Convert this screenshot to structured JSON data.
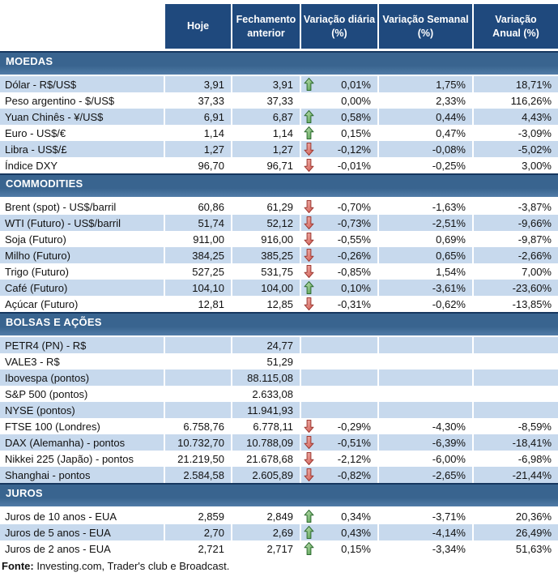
{
  "colors": {
    "header_bg": "#1F497D",
    "section_band_top": "#39648F",
    "section_band_bottom": "#517CA7",
    "row_shaded": "#C7D9ED",
    "row_plain": "#FFFFFF",
    "up_arrow_green": "#4C9A49",
    "down_arrow_red": "#CE5349",
    "text": "#111111"
  },
  "icons": {
    "up": "up-arrow-icon",
    "down": "down-arrow-icon"
  },
  "chart_data": {
    "type": "table",
    "columns": [
      "Hoje",
      "Fechamento\nanterior",
      "Variação diária\n(%)",
      "Variação Semanal\n(%)",
      "Variação\nAnual (%)"
    ],
    "sections": [
      {
        "title": "MOEDAS",
        "rows": [
          {
            "label": "Dólar - R$/US$",
            "values": [
              "3,91",
              "3,91",
              "0,01%",
              "1,75%",
              "18,71%"
            ],
            "arrow": "up"
          },
          {
            "label": "Peso argentino - $/US$",
            "values": [
              "37,33",
              "37,33",
              "0,00%",
              "2,33%",
              "116,26%"
            ],
            "arrow": null
          },
          {
            "label": "Yuan Chinês - ¥/US$",
            "values": [
              "6,91",
              "6,87",
              "0,58%",
              "0,44%",
              "4,43%"
            ],
            "arrow": "up"
          },
          {
            "label": "Euro - US$/€",
            "values": [
              "1,14",
              "1,14",
              "0,15%",
              "0,47%",
              "-3,09%"
            ],
            "arrow": "up"
          },
          {
            "label": "Libra - US$/£",
            "values": [
              "1,27",
              "1,27",
              "-0,12%",
              "-0,08%",
              "-5,02%"
            ],
            "arrow": "down"
          },
          {
            "label": "Índice DXY",
            "values": [
              "96,70",
              "96,71",
              "-0,01%",
              "-0,25%",
              "3,00%"
            ],
            "arrow": "down"
          }
        ]
      },
      {
        "title": "COMMODITIES",
        "rows": [
          {
            "label": "Brent (spot) - US$/barril",
            "values": [
              "60,86",
              "61,29",
              "-0,70%",
              "-1,63%",
              "-3,87%"
            ],
            "arrow": "down"
          },
          {
            "label": "WTI (Futuro) - US$/barril",
            "values": [
              "51,74",
              "52,12",
              "-0,73%",
              "-2,51%",
              "-9,66%"
            ],
            "arrow": "down"
          },
          {
            "label": "Soja (Futuro)",
            "values": [
              "911,00",
              "916,00",
              "-0,55%",
              "0,69%",
              "-9,87%"
            ],
            "arrow": "down"
          },
          {
            "label": "Milho (Futuro)",
            "values": [
              "384,25",
              "385,25",
              "-0,26%",
              "0,65%",
              "-2,66%"
            ],
            "arrow": "down"
          },
          {
            "label": "Trigo (Futuro)",
            "values": [
              "527,25",
              "531,75",
              "-0,85%",
              "1,54%",
              "7,00%"
            ],
            "arrow": "down"
          },
          {
            "label": "Café (Futuro)",
            "values": [
              "104,10",
              "104,00",
              "0,10%",
              "-3,61%",
              "-23,60%"
            ],
            "arrow": "up"
          },
          {
            "label": "Açúcar (Futuro)",
            "values": [
              "12,81",
              "12,85",
              "-0,31%",
              "-0,62%",
              "-13,85%"
            ],
            "arrow": "down"
          }
        ]
      },
      {
        "title": "BOLSAS E AÇÕES",
        "rows": [
          {
            "label": "PETR4 (PN) - R$",
            "values": [
              "",
              "24,77",
              "",
              "",
              ""
            ],
            "arrow": null
          },
          {
            "label": "VALE3 - R$",
            "values": [
              "",
              "51,29",
              "",
              "",
              ""
            ],
            "arrow": null
          },
          {
            "label": "Ibovespa (pontos)",
            "values": [
              "",
              "88.115,08",
              "",
              "",
              ""
            ],
            "arrow": null
          },
          {
            "label": "S&P 500 (pontos)",
            "values": [
              "",
              "2.633,08",
              "",
              "",
              ""
            ],
            "arrow": null
          },
          {
            "label": "NYSE (pontos)",
            "values": [
              "",
              "11.941,93",
              "",
              "",
              ""
            ],
            "arrow": null
          },
          {
            "label": "FTSE 100 (Londres)",
            "values": [
              "6.758,76",
              "6.778,11",
              "-0,29%",
              "-4,30%",
              "-8,59%"
            ],
            "arrow": "down"
          },
          {
            "label": "DAX (Alemanha) - pontos",
            "values": [
              "10.732,70",
              "10.788,09",
              "-0,51%",
              "-6,39%",
              "-18,41%"
            ],
            "arrow": "down"
          },
          {
            "label": "Nikkei 225 (Japão) - pontos",
            "values": [
              "21.219,50",
              "21.678,68",
              "-2,12%",
              "-6,00%",
              "-6,98%"
            ],
            "arrow": "down"
          },
          {
            "label": "Shanghai - pontos",
            "values": [
              "2.584,58",
              "2.605,89",
              "-0,82%",
              "-2,65%",
              "-21,44%"
            ],
            "arrow": "down"
          }
        ]
      },
      {
        "title": "JUROS",
        "rows": [
          {
            "label": "Juros de 10 anos - EUA",
            "values": [
              "2,859",
              "2,849",
              "0,34%",
              "-3,71%",
              "20,36%"
            ],
            "arrow": "up"
          },
          {
            "label": "Juros de 5 anos - EUA",
            "values": [
              "2,70",
              "2,69",
              "0,43%",
              "-4,14%",
              "26,49%"
            ],
            "arrow": "up"
          },
          {
            "label": "Juros de 2 anos - EUA",
            "values": [
              "2,721",
              "2,717",
              "0,15%",
              "-3,34%",
              "51,63%"
            ],
            "arrow": "up"
          }
        ]
      }
    ],
    "footer": {
      "bold": "Fonte:",
      "text": " Investing.com, Trader's club e Broadcast."
    }
  }
}
